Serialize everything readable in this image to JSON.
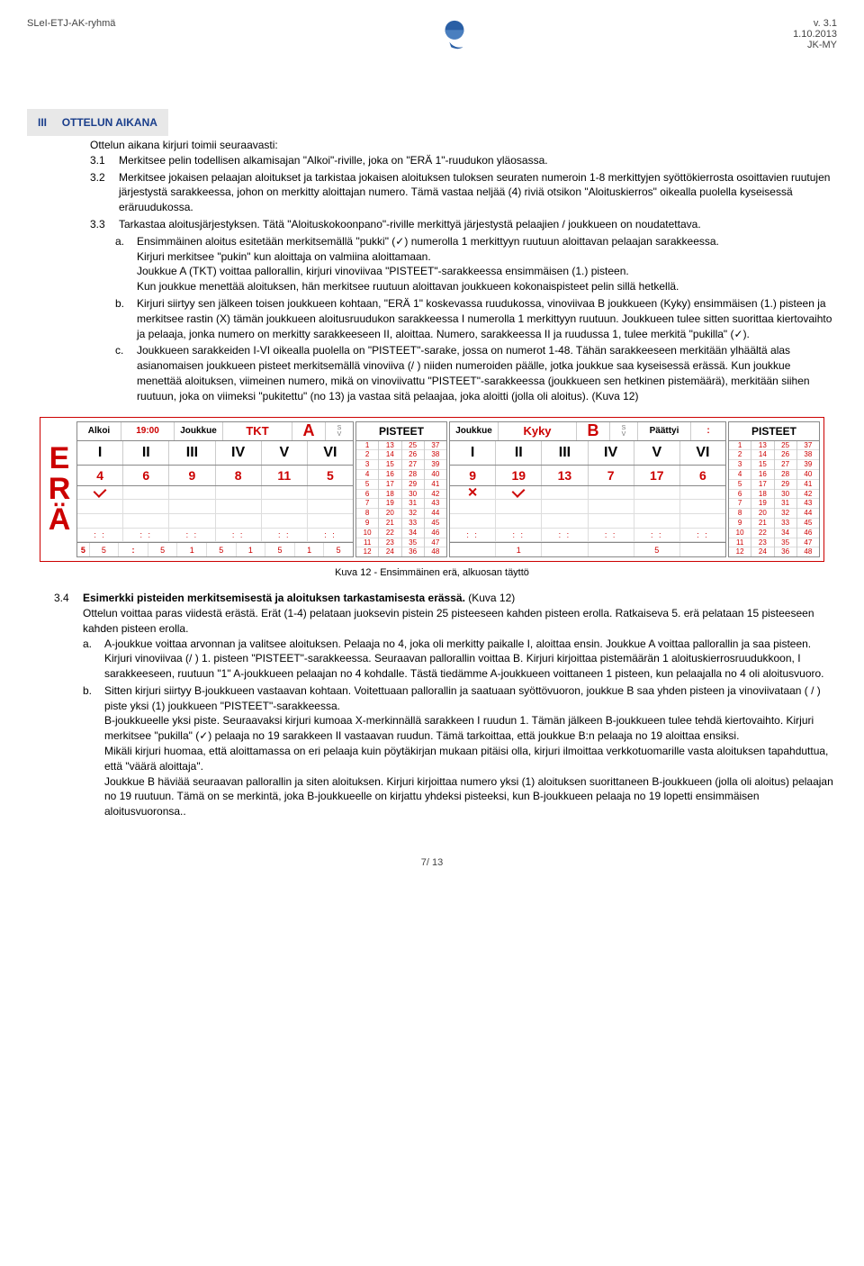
{
  "header": {
    "left": "SLeI-ETJ-AK-ryhmä",
    "right_line1": "v. 3.1",
    "right_line2": "1.10.2013",
    "right_line3": "JK-MY"
  },
  "section": {
    "roman": "III",
    "title": "OTTELUN AIKANA",
    "intro": "Ottelun aikana kirjuri toimii seuraavasti:"
  },
  "items": {
    "i31_num": "3.1",
    "i31": "Merkitsee pelin todellisen alkamisajan \"Alkoi\"-riville, joka on \"ERÄ 1\"-ruudukon yläosassa.",
    "i32_num": "3.2",
    "i32": "Merkitsee jokaisen pelaajan aloitukset ja tarkistaa jokaisen aloituksen tuloksen seuraten numeroin 1-8 merkittyjen syöttökierrosta osoittavien ruutujen järjestystä sarakkeessa, johon on merkitty aloittajan numero. Tämä vastaa neljää (4) riviä otsikon \"Aloituskierros\" oikealla puolella kyseisessä eräruudukossa.",
    "i33_num": "3.3",
    "i33": "Tarkastaa aloitusjärjestyksen. Tätä \"Aloituskokoonpano\"-riville merkittyä järjestystä pelaajien / joukkueen on noudatettava.",
    "a_label": "a.",
    "a_p1": "Ensimmäinen aloitus esitetään merkitsemällä \"pukki\" (✓) numerolla 1 merkittyyn ruutuun aloittavan pelaajan sarakkeessa.",
    "a_p2": "Kirjuri merkitsee \"pukin\" kun aloittaja on valmiina aloittamaan.",
    "a_p3": "Joukkue A (TKT) voittaa pallorallin, kirjuri vinoviivaa \"PISTEET\"-sarakkeessa ensimmäisen (1.) pisteen.",
    "a_p4": "Kun joukkue menettää aloituksen, hän merkitsee ruutuun aloittavan joukkueen kokonaispisteet pelin sillä hetkellä.",
    "b_label": "b.",
    "b_p1": "Kirjuri siirtyy sen jälkeen toisen joukkueen kohtaan, \"ERÄ 1\" koskevassa ruudukossa, vinoviivaa B joukkueen (Kyky) ensimmäisen (1.) pisteen ja merkitsee rastin (X) tämän joukkueen aloitusruudukon sarakkeessa I numerolla 1 merkittyyn ruutuun. Joukkueen tulee sitten suorittaa kiertovaihto ja pelaaja, jonka numero on merkitty sarakkeeseen II, aloittaa. Numero, sarakkeessa II ja ruudussa 1, tulee merkitä \"pukilla\" (✓).",
    "c_label": "c.",
    "c_p1": "Joukkueen sarakkeiden I-VI oikealla puolella on \"PISTEET\"-sarake, jossa on numerot 1-48. Tähän sarakkeeseen merkitään ylhäältä alas asianomaisen joukkueen pisteet merkitsemällä vinoviiva (/ ) niiden numeroiden päälle, jotka joukkue saa kyseisessä erässä. Kun joukkue menettää aloituksen, viimeinen numero, mikä on vinoviivattu \"PISTEET\"-sarakkeessa (joukkueen sen hetkinen pistemäärä), merkitään siihen ruutuun, joka on viimeksi \"pukitettu\" (no 13) ja vastaa sitä pelaajaa, joka aloitti (jolla oli aloitus). (Kuva 12)"
  },
  "figure": {
    "caption": "Kuva 12 - Ensimmäinen erä, alkuosan täyttö",
    "era_letters": [
      "E",
      "R",
      "Ä"
    ],
    "teamA": {
      "alkoi_label": "Alkoi",
      "alkoi_time": "19:00",
      "joukkue_label": "Joukkue",
      "joukkue_name": "TKT",
      "letter": "A",
      "s_label": "S",
      "v_label": "V",
      "romans": [
        "I",
        "II",
        "III",
        "IV",
        "V",
        "VI"
      ],
      "nums": [
        "4",
        "6",
        "9",
        "8",
        "11",
        "5"
      ],
      "grid_bottom": [
        "5",
        "5",
        ":",
        "5",
        "1",
        "5",
        "1",
        "5",
        "1",
        "5"
      ]
    },
    "pisteetA": {
      "title": "PISTEET",
      "col1": [
        "1",
        "2",
        "3",
        "4",
        "5",
        "6",
        "7",
        "8",
        "9",
        "10",
        "11",
        "12"
      ],
      "col2": [
        "13",
        "14",
        "15",
        "16",
        "17",
        "18",
        "19",
        "20",
        "21",
        "22",
        "23",
        "24"
      ],
      "col3": [
        "25",
        "26",
        "27",
        "28",
        "29",
        "30",
        "31",
        "32",
        "33",
        "34",
        "35",
        "36"
      ],
      "col4": [
        "37",
        "38",
        "39",
        "40",
        "41",
        "42",
        "43",
        "44",
        "45",
        "46",
        "47",
        "48"
      ]
    },
    "teamB": {
      "joukkue_label": "Joukkue",
      "joukkue_name": "Kyky",
      "letter": "B",
      "paattyi_label": "Päättyi",
      "s_label": "S",
      "v_label": "V",
      "romans": [
        "I",
        "II",
        "III",
        "IV",
        "V",
        "VI"
      ],
      "nums": [
        "9",
        "19",
        "13",
        "7",
        "17",
        "6"
      ],
      "grid_bottom": [
        "",
        "1",
        "",
        "",
        "5",
        ""
      ]
    },
    "pisteetB": {
      "title": "PISTEET",
      "col1": [
        "1",
        "2",
        "3",
        "4",
        "5",
        "6",
        "7",
        "8",
        "9",
        "10",
        "11",
        "12"
      ],
      "col2": [
        "13",
        "14",
        "15",
        "16",
        "17",
        "18",
        "19",
        "20",
        "21",
        "22",
        "23",
        "24"
      ],
      "col3": [
        "25",
        "26",
        "27",
        "28",
        "29",
        "30",
        "31",
        "32",
        "33",
        "34",
        "35",
        "36"
      ],
      "col4": [
        "37",
        "38",
        "39",
        "40",
        "41",
        "42",
        "43",
        "44",
        "45",
        "46",
        "47",
        "48"
      ]
    }
  },
  "section34": {
    "num": "3.4",
    "title": "Esimerkki pisteiden merkitsemisestä ja aloituksen tarkastamisesta erässä.",
    "title_suffix": " (Kuva 12)",
    "p1": "Ottelun voittaa paras viidestä erästä. Erät (1-4) pelataan juoksevin pistein 25 pisteeseen kahden pisteen erolla. Ratkaiseva 5. erä pelataan 15 pisteeseen kahden pisteen erolla.",
    "a_label": "a.",
    "a": "A-joukkue voittaa arvonnan ja valitsee aloituksen. Pelaaja no 4, joka oli merkitty paikalle I, aloittaa ensin. Joukkue A voittaa pallorallin ja saa pisteen. Kirjuri vinoviivaa (/ ) 1. pisteen \"PISTEET\"-sarakkeessa. Seuraavan pallorallin voittaa B. Kirjuri kirjoittaa pistemäärän 1 aloituskierrosruudukkoon, I sarakkeeseen, ruutuun \"1\" A-joukkueen pelaajan no 4 kohdalle. Tästä tiedämme A-joukkueen voittaneen 1 pisteen, kun pelaajalla no 4 oli aloitusvuoro.",
    "b_label": "b.",
    "b": "Sitten kirjuri siirtyy B-joukkueen vastaavan kohtaan. Voitettuaan pallorallin ja saatuaan syöttövuoron, joukkue B saa yhden pisteen ja vinoviivataan ( / ) piste yksi (1) joukkueen \"PISTEET\"-sarakkeessa.",
    "b2": "B-joukkueelle yksi piste. Seuraavaksi kirjuri kumoaa X-merkinnällä sarakkeen I ruudun 1. Tämän jälkeen B-joukkueen tulee tehdä kiertovaihto. Kirjuri merkitsee \"pukilla\" (✓) pelaaja no 19 sarakkeen II vastaavan ruudun. Tämä tarkoittaa, että joukkue B:n pelaaja no 19 aloittaa ensiksi.",
    "b3": "Mikäli kirjuri huomaa, että aloittamassa on eri pelaaja kuin pöytäkirjan mukaan pitäisi olla, kirjuri ilmoittaa verkkotuomarille vasta aloituksen tapahduttua, että \"väärä aloittaja\".",
    "b4": "Joukkue B häviää seuraavan pallorallin ja siten aloituksen. Kirjuri kirjoittaa numero yksi (1) aloituksen suorittaneen B-joukkueen (jolla oli aloitus) pelaajan no 19 ruutuun. Tämä on se merkintä, joka B-joukkueelle on kirjattu yhdeksi pisteeksi, kun B-joukkueen pelaaja no 19 lopetti ensimmäisen aloitusvuoronsa.."
  },
  "footer": {
    "page": "7/ 13"
  }
}
